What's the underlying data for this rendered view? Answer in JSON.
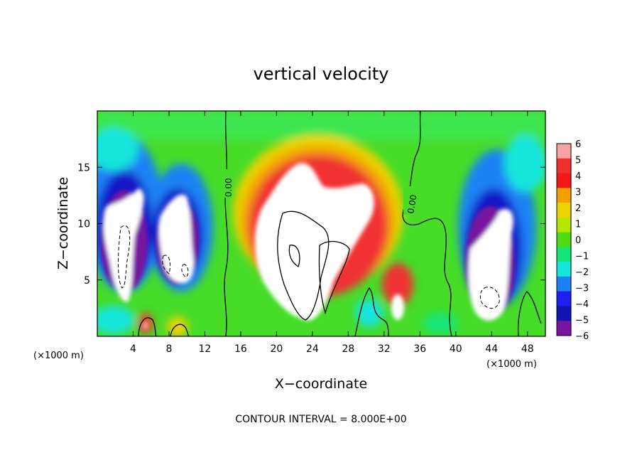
{
  "chart_data": {
    "type": "heatmap",
    "title": "vertical velocity",
    "xlabel": "X−coordinate",
    "ylabel": "Z−coordinate",
    "x_unit": "(×1000 m)",
    "x_unit_right": "(×1000 m)",
    "xlim": [
      0,
      50
    ],
    "ylim": [
      0,
      20
    ],
    "xticks": [
      4,
      8,
      12,
      16,
      20,
      24,
      28,
      32,
      36,
      40,
      44,
      48
    ],
    "xtick_labels": [
      "4",
      "8",
      "12",
      "16",
      "20",
      "24",
      "28",
      "32",
      "36",
      "40",
      "44",
      "48"
    ],
    "yticks": [
      5,
      10,
      15
    ],
    "ytick_labels": [
      "5",
      "10",
      "15"
    ],
    "colorbar": {
      "levels": [
        6,
        5,
        4,
        3,
        2,
        1,
        0,
        -1,
        -2,
        -3,
        -4,
        -5,
        -6
      ],
      "labels": [
        "6",
        "5",
        "4",
        "3",
        "2",
        "1",
        "0",
        "−1",
        "−2",
        "−3",
        "−4",
        "−5",
        "−6"
      ],
      "colors": [
        "#f7a3a3",
        "#f03030",
        "#f51818",
        "#f2a000",
        "#ecd200",
        "#b4e600",
        "#50dc14",
        "#14e678",
        "#14e6dc",
        "#1e82f5",
        "#1e1ef0",
        "#1414b4",
        "#7814a0"
      ],
      "range": [
        -6,
        6
      ]
    },
    "contour_labels": [
      {
        "text": "0.00",
        "x": 14.8,
        "y": 13.3
      },
      {
        "text": "0.00",
        "x": 35.0,
        "y": 11.7
      }
    ],
    "features": [
      {
        "kind": "updraft",
        "x": 24,
        "z": 8,
        "strength": 9
      },
      {
        "kind": "downdraft",
        "x": 3,
        "z": 8,
        "strength": -9
      },
      {
        "kind": "downdraft",
        "x": 9,
        "z": 7,
        "strength": -8
      },
      {
        "kind": "downdraft",
        "x": 45,
        "z": 6,
        "strength": -9
      },
      {
        "kind": "updraft",
        "x": 33.5,
        "z": 2.5,
        "strength": 6
      }
    ],
    "note": "CONTOUR INTERVAL = 8.000E+00"
  }
}
